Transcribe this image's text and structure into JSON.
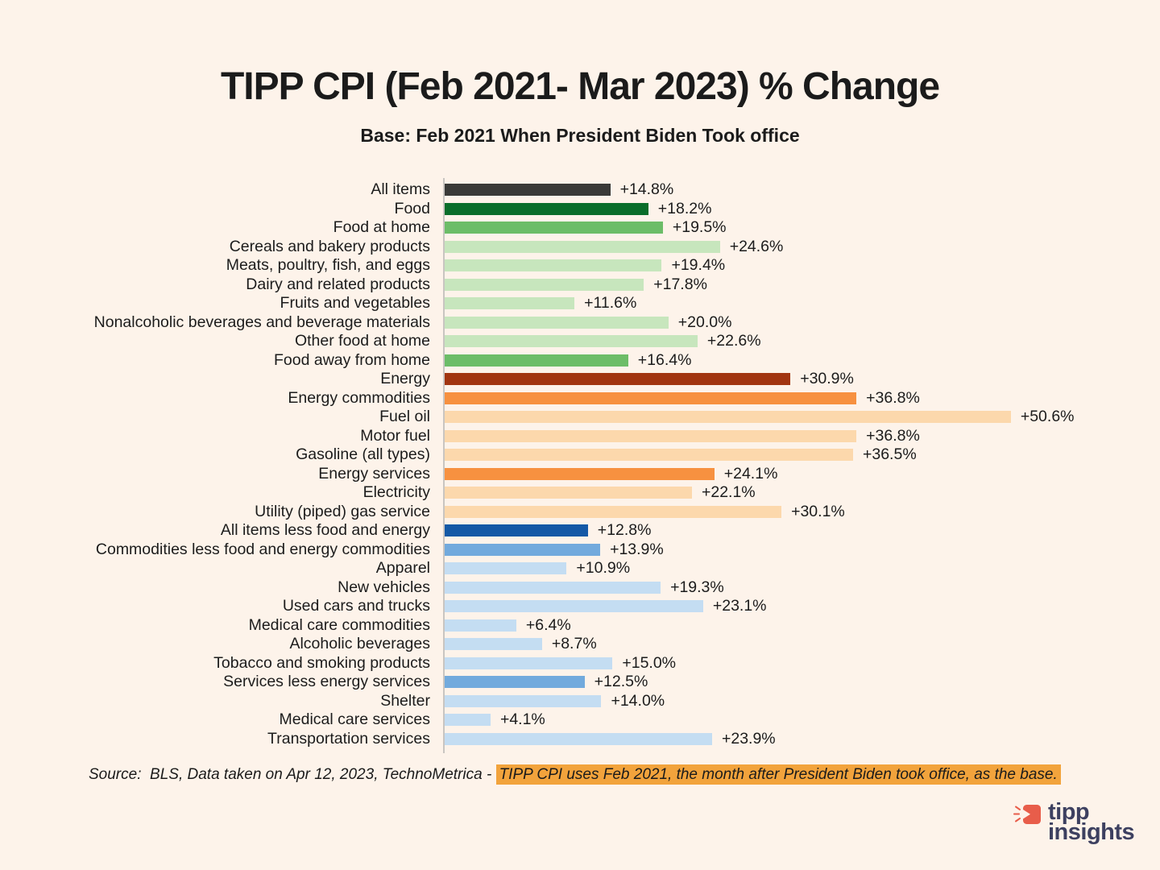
{
  "title": "TIPP CPI (Feb 2021- Mar 2023) % Change",
  "subtitle": "Base: Feb 2021 When President Biden Took office",
  "chart_data": {
    "type": "bar",
    "orientation": "horizontal",
    "xlim": [
      0,
      52
    ],
    "value_suffix": "%",
    "categories": [
      "All items",
      "Food",
      "Food at home",
      "Cereals and bakery products",
      "Meats, poultry, fish, and eggs",
      "Dairy and related products",
      "Fruits and vegetables",
      "Nonalcoholic beverages and beverage materials",
      "Other food at home",
      "Food away from home",
      "Energy",
      "Energy commodities",
      "Fuel oil",
      "Motor fuel",
      "Gasoline (all types)",
      "Energy services",
      "Electricity",
      "Utility (piped) gas service",
      "All items less food and energy",
      "Commodities less food and energy commodities",
      "Apparel",
      "New vehicles",
      "Used cars and trucks",
      "Medical care commodities",
      "Alcoholic beverages",
      "Tobacco and smoking products",
      "Services less energy services",
      "Shelter",
      "Medical care services",
      "Transportation services"
    ],
    "values": [
      14.8,
      18.2,
      19.5,
      24.6,
      19.4,
      17.8,
      11.6,
      20.0,
      22.6,
      16.4,
      30.9,
      36.8,
      50.6,
      36.8,
      36.5,
      24.1,
      22.1,
      30.1,
      12.8,
      13.9,
      10.9,
      19.3,
      23.1,
      6.4,
      8.7,
      15.0,
      12.5,
      14.0,
      4.1,
      23.9
    ],
    "bar_colors": [
      "dark_gray",
      "dark_green",
      "mid_green",
      "light_green",
      "light_green",
      "light_green",
      "light_green",
      "light_green",
      "light_green",
      "mid_green",
      "dark_red",
      "orange",
      "light_orange",
      "light_orange",
      "light_orange",
      "orange",
      "light_orange",
      "light_orange",
      "dark_blue",
      "mid_blue",
      "light_blue",
      "light_blue",
      "light_blue",
      "light_blue",
      "light_blue",
      "light_blue",
      "mid_blue",
      "light_blue",
      "light_blue",
      "light_blue"
    ],
    "palette": {
      "dark_gray": "#3a3a38",
      "dark_green": "#0a6e2b",
      "mid_green": "#6cbd68",
      "light_green": "#c7e6bd",
      "dark_red": "#a23510",
      "orange": "#f79140",
      "light_orange": "#fcd8ac",
      "dark_blue": "#1459a6",
      "mid_blue": "#72aadd",
      "light_blue": "#c4ddf2"
    }
  },
  "footer": {
    "source_prefix": "Source:  BLS, Data taken on Apr 12, 2023, TechnoMetrica - ",
    "highlight": "TIPP CPI uses Feb 2021, the month after President Biden took office, as the base.",
    "highlight_color": "#f2a33c"
  },
  "logo": {
    "line1": "tipp",
    "line2": "insights",
    "icon_color": "#e85d4a",
    "text_color": "#3d4060"
  }
}
